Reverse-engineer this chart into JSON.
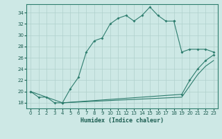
{
  "title": "",
  "xlabel": "Humidex (Indice chaleur)",
  "background_color": "#cde8e5",
  "line_color": "#2e7d6e",
  "grid_color": "#afd0cc",
  "xlim": [
    -0.5,
    23.5
  ],
  "ylim": [
    17,
    35.5
  ],
  "yticks": [
    18,
    20,
    22,
    24,
    26,
    28,
    30,
    32,
    34
  ],
  "xticks": [
    0,
    1,
    2,
    3,
    4,
    5,
    6,
    7,
    8,
    9,
    10,
    11,
    12,
    13,
    14,
    15,
    16,
    17,
    18,
    19,
    20,
    21,
    22,
    23
  ],
  "curve1_x": [
    0,
    1,
    2,
    3,
    4,
    5,
    6,
    7,
    8,
    9,
    10,
    11,
    12,
    13,
    14,
    15,
    16,
    17,
    18
  ],
  "curve1_y": [
    20.0,
    19.0,
    19.0,
    18.0,
    18.0,
    20.5,
    22.5,
    27.0,
    29.0,
    29.5,
    32.0,
    33.0,
    33.5,
    32.5,
    33.5,
    35.0,
    33.5,
    32.5,
    32.5
  ],
  "curve2_x": [
    18,
    19,
    20,
    21,
    22,
    23
  ],
  "curve2_y": [
    32.5,
    27.0,
    27.5,
    27.5,
    27.5,
    27.0
  ],
  "curve3_x": [
    0,
    4,
    19,
    20,
    21,
    22,
    23
  ],
  "curve3_y": [
    20.0,
    18.0,
    19.5,
    22.0,
    24.0,
    25.5,
    26.5
  ],
  "curve4_x": [
    4,
    19,
    20,
    21,
    22,
    23
  ],
  "curve4_y": [
    18.0,
    19.0,
    21.0,
    23.0,
    24.5,
    25.5
  ]
}
